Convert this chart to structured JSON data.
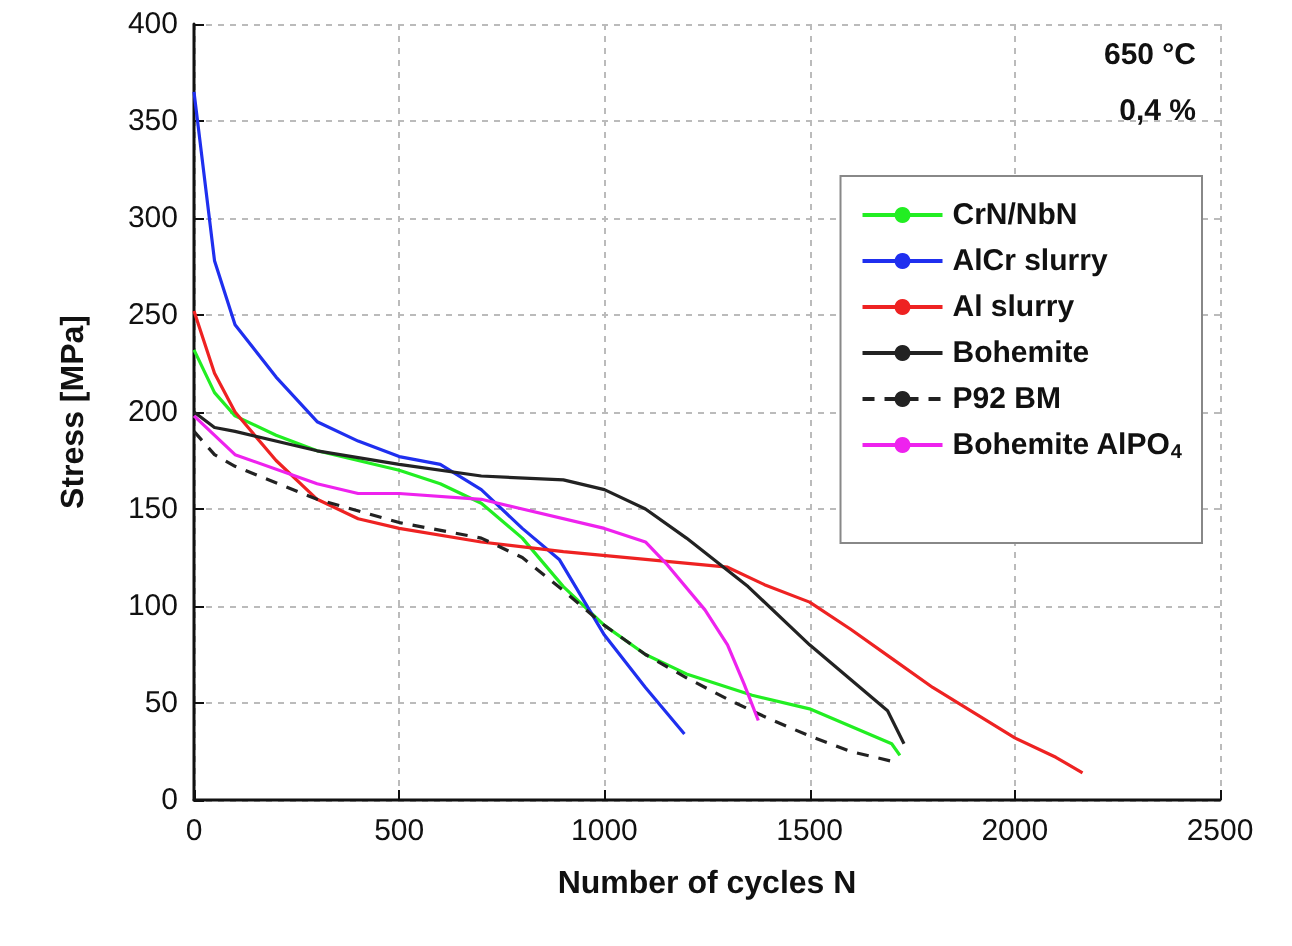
{
  "chart_data": {
    "type": "line",
    "xlabel": "Number of cycles N",
    "ylabel": "Stress [MPa]",
    "xlim": [
      0,
      2500
    ],
    "xticks": [
      0,
      500,
      1000,
      1500,
      2000,
      2500
    ],
    "ylim": [
      0,
      400
    ],
    "yticks": [
      0,
      50,
      100,
      150,
      200,
      250,
      300,
      350,
      400
    ],
    "grid": true,
    "legend": "top right",
    "marker": "none",
    "annotations": [
      "650 °C",
      "0,4 %"
    ],
    "series": [
      {
        "name": "CrN/NbN",
        "color": "#22ee22",
        "x": [
          0,
          50,
          100,
          200,
          300,
          500,
          600,
          700,
          800,
          900,
          1000,
          1100,
          1200,
          1360,
          1500,
          1700,
          1720
        ],
        "values": [
          232,
          210,
          198,
          188,
          180,
          170,
          163,
          153,
          135,
          110,
          90,
          75,
          65,
          54,
          47,
          29,
          23
        ]
      },
      {
        "name": "AlCr slurry",
        "color": "#1f2fef",
        "x": [
          0,
          50,
          100,
          200,
          300,
          400,
          500,
          600,
          700,
          800,
          890,
          1000,
          1100,
          1195
        ],
        "values": [
          365,
          278,
          245,
          218,
          195,
          185,
          177,
          173,
          160,
          140,
          124,
          85,
          58,
          34
        ]
      },
      {
        "name": "Al slurry",
        "color": "#ee2222",
        "x": [
          0,
          50,
          100,
          200,
          300,
          400,
          500,
          700,
          900,
          1100,
          1300,
          1390,
          1500,
          1600,
          1700,
          1800,
          1900,
          2000,
          2100,
          2165
        ],
        "values": [
          252,
          220,
          200,
          175,
          155,
          145,
          140,
          133,
          128,
          124,
          120,
          111,
          102,
          88,
          73,
          58,
          45,
          32,
          22,
          14
        ]
      },
      {
        "name": "Bohemite",
        "color": "#222222",
        "x": [
          0,
          50,
          100,
          300,
          500,
          700,
          900,
          1000,
          1100,
          1200,
          1350,
          1500,
          1690,
          1730
        ],
        "values": [
          200,
          192,
          190,
          180,
          173,
          167,
          165,
          160,
          150,
          135,
          110,
          80,
          46,
          29
        ]
      },
      {
        "name": "P92 BM",
        "color": "#222222",
        "line_style": "dashed",
        "x": [
          0,
          50,
          100,
          300,
          500,
          700,
          800,
          900,
          1000,
          1100,
          1200,
          1300,
          1400,
          1500,
          1600,
          1700
        ],
        "values": [
          190,
          178,
          172,
          155,
          143,
          135,
          125,
          108,
          90,
          75,
          63,
          52,
          42,
          33,
          25,
          20
        ]
      },
      {
        "name": "Bohemite AlPO$_{4}$",
        "color": "#ee22ee",
        "x": [
          0,
          100,
          300,
          400,
          500,
          700,
          800,
          1000,
          1100,
          1150,
          1245,
          1300,
          1340,
          1375
        ],
        "values": [
          198,
          178,
          163,
          158,
          158,
          155,
          150,
          140,
          133,
          122,
          98,
          80,
          60,
          41
        ]
      }
    ]
  }
}
